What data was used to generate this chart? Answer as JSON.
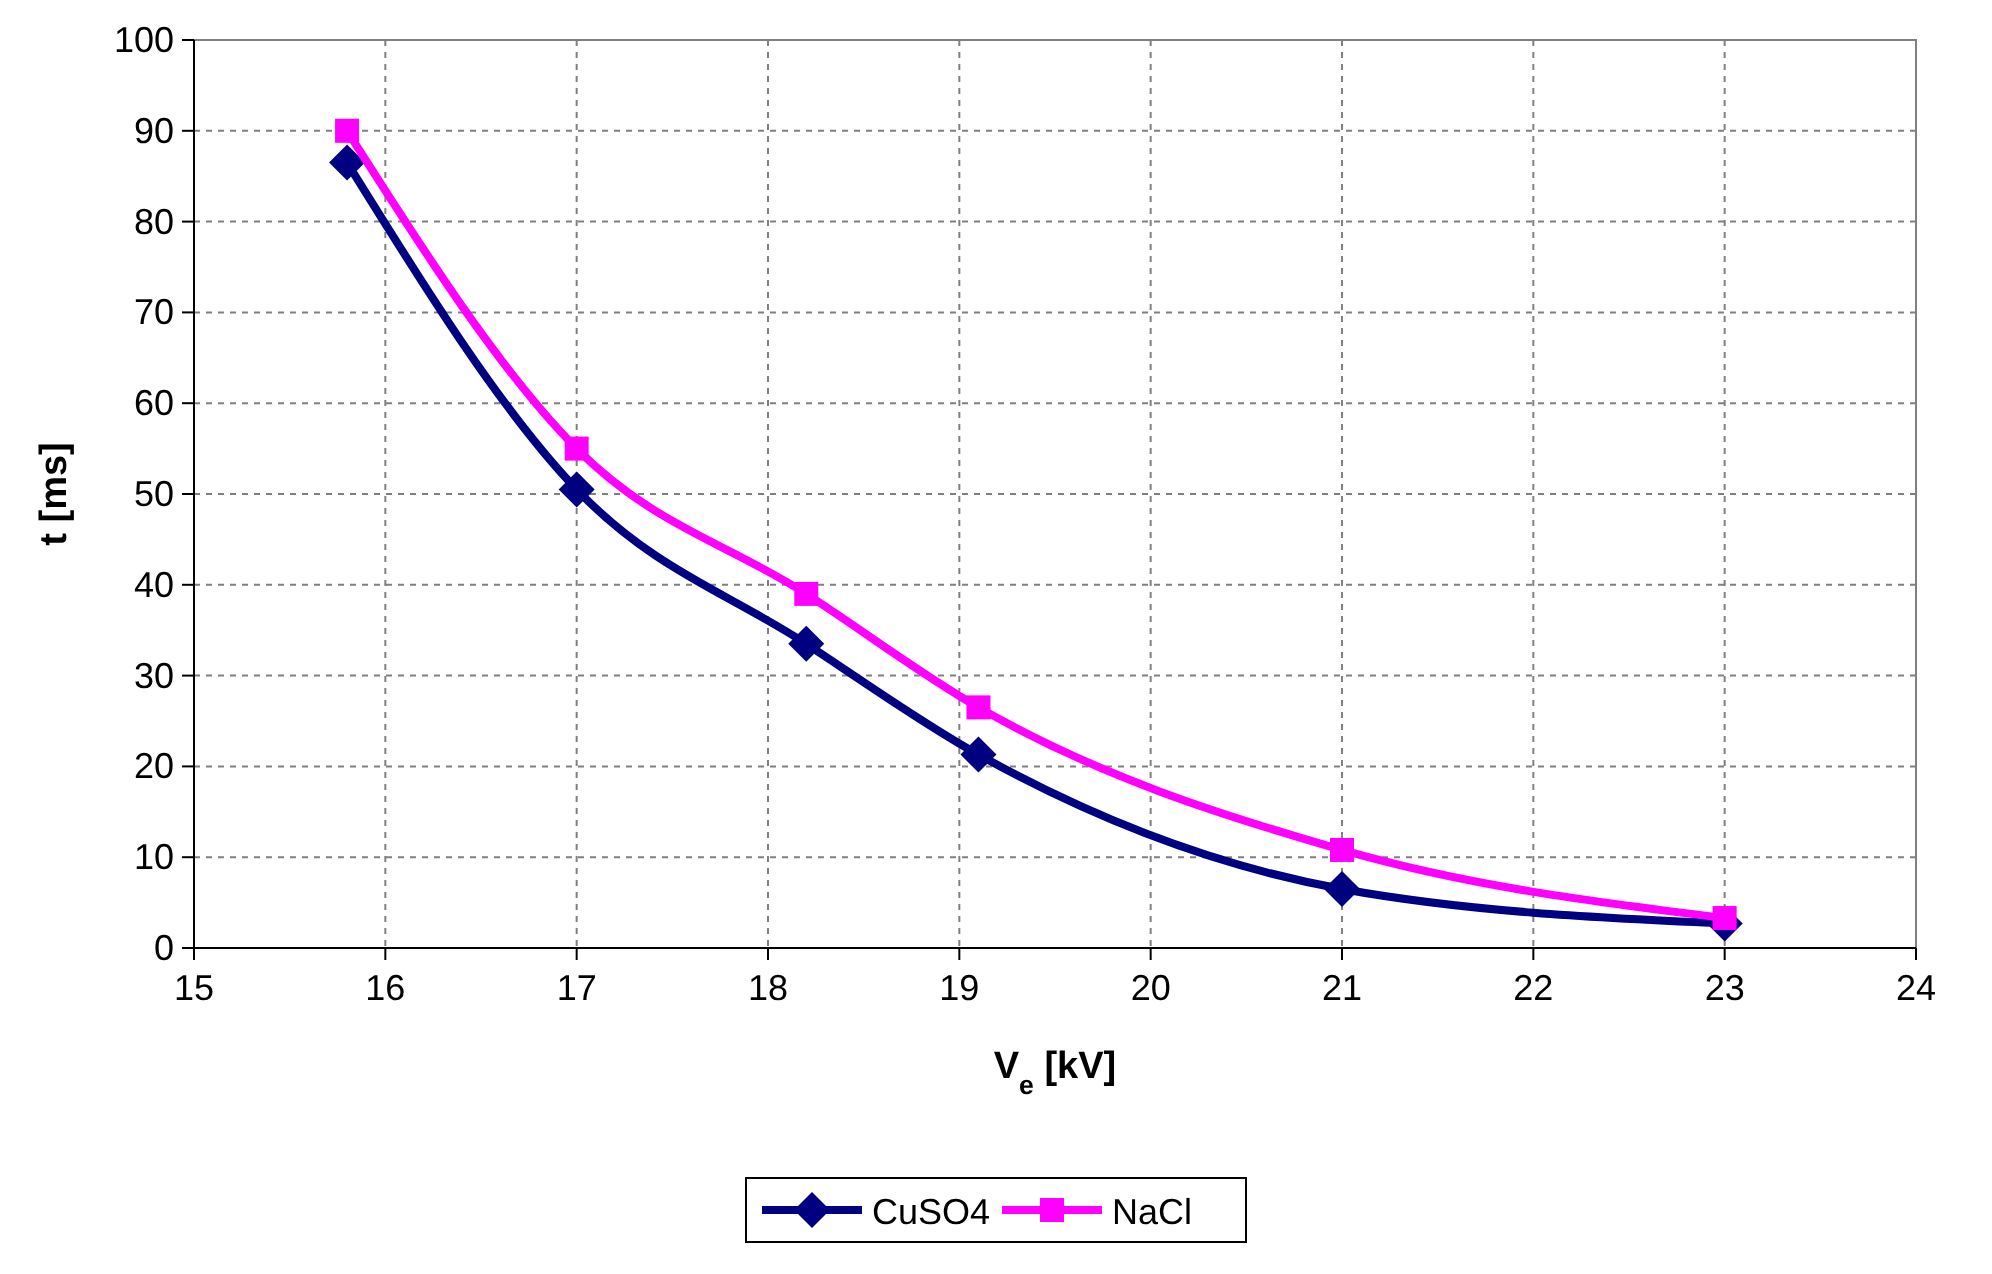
{
  "chart_data": {
    "type": "line",
    "xlabel": "V$_{e}$ [kV]",
    "ylabel": "t [ms]",
    "xlim": [
      15,
      24
    ],
    "xticks": [
      15,
      16,
      17,
      18,
      19,
      20,
      21,
      22,
      23,
      24
    ],
    "ylim": [
      0,
      100
    ],
    "yticks": [
      0,
      10,
      20,
      30,
      40,
      50,
      60,
      70,
      80,
      90,
      100
    ],
    "grid": true,
    "legend": "bottom",
    "line_style": "solid",
    "x": [
      15.8,
      17,
      18.2,
      19.1,
      21,
      23
    ],
    "series": [
      {
        "name": "CuSO4",
        "color": "#000080",
        "marker": "diamond",
        "values": [
          86.5,
          50.5,
          33.5,
          21.3,
          6.5,
          2.7
        ]
      },
      {
        "name": "NaCl",
        "color": "#ff00ff",
        "marker": "square",
        "values": [
          90,
          55,
          39,
          26.5,
          10.8,
          3.3
        ]
      }
    ]
  }
}
